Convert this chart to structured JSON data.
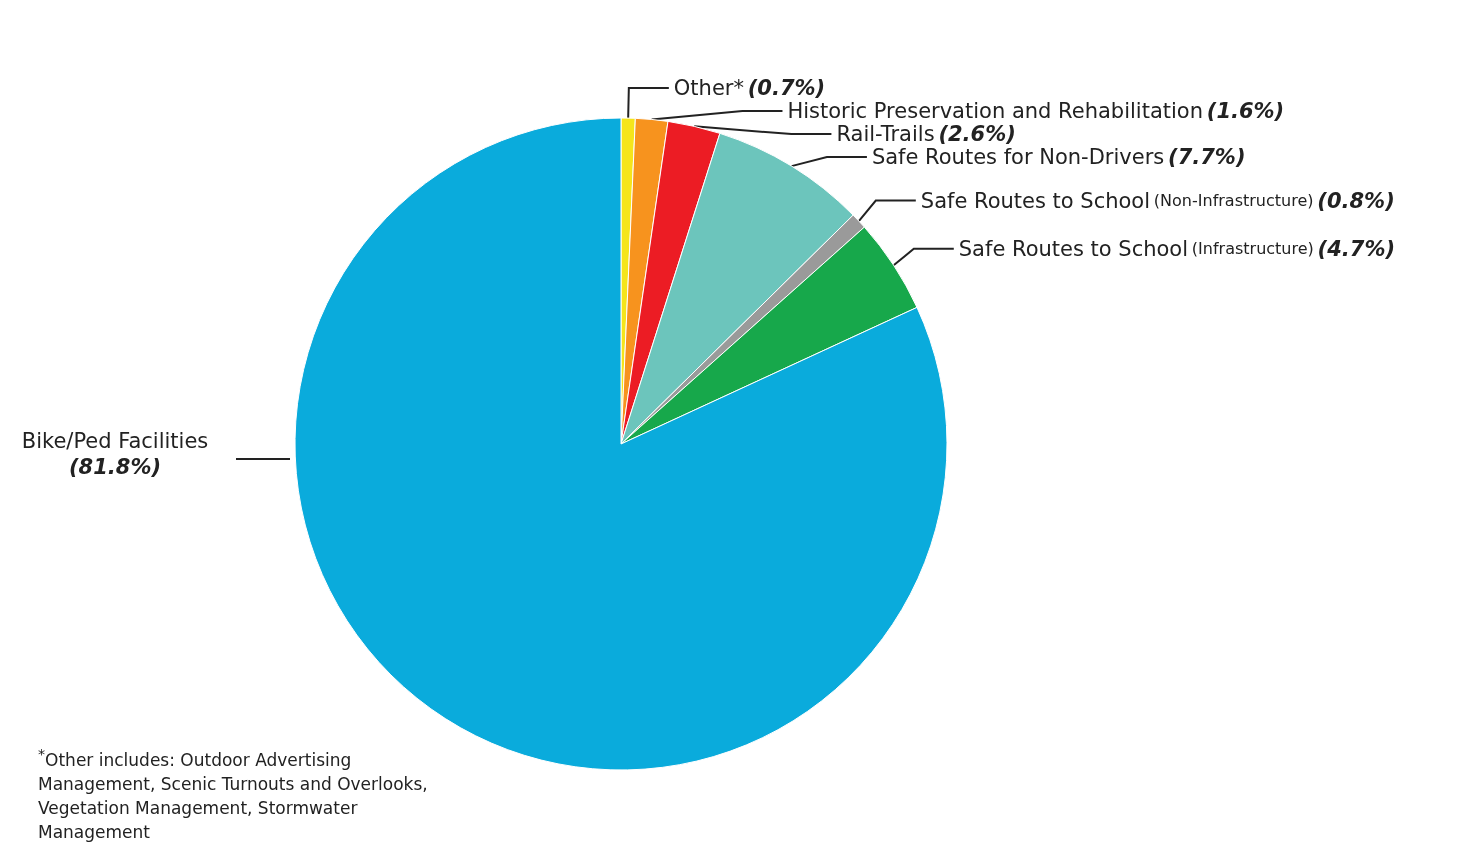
{
  "chart_data": {
    "type": "pie",
    "categories": [
      "Other*",
      "Historic Preservation and Rehabilitation",
      "Rail-Trails",
      "Safe Routes for Non-Drivers",
      "Safe Routes to School (Non-Infrastructure)",
      "Safe Routes to School (Infrastructure)",
      "Bike/Ped Facilities"
    ],
    "values": [
      0.7,
      1.6,
      2.6,
      7.7,
      0.8,
      4.7,
      81.8
    ],
    "value_labels": [
      "(0.7%)",
      "(1.6%)",
      "(2.6%)",
      "(7.7%)",
      "(0.8%)",
      "(4.7%)",
      "(81.8%)"
    ],
    "colors": [
      "#f5e51b",
      "#f7931e",
      "#ec1c24",
      "#6cc5bc",
      "#9a9a9a",
      "#17a84b",
      "#0aabdc"
    ],
    "annotations": [
      "$^{*}$Other includes: Outdoor Advertising Management, Scenic Turnouts and Overlooks, Vegetation Management, Stormwater Management"
    ],
    "legend": false
  }
}
